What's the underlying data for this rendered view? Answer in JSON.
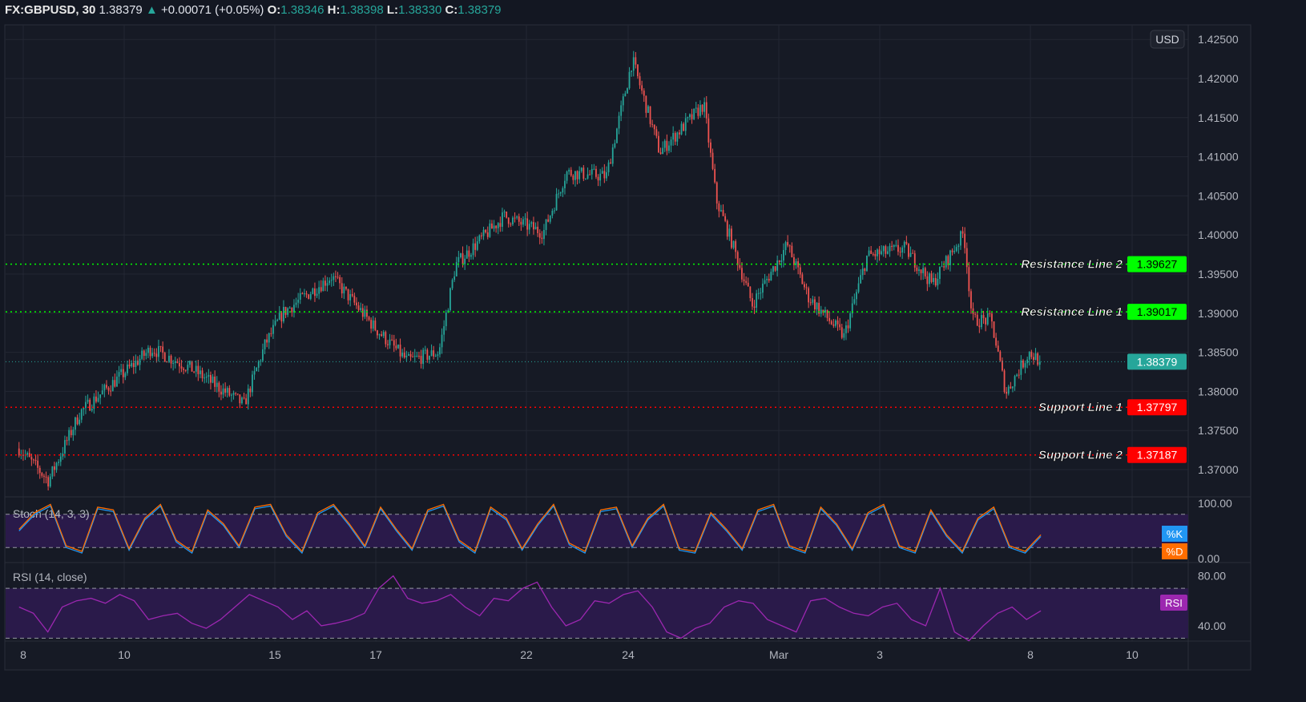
{
  "header": {
    "symbol": "FX:GBPUSD, 30",
    "last": "1.38379",
    "change": "+0.00071 (+0.05%)",
    "o_label": "O:",
    "o": "1.38346",
    "h_label": "H:",
    "h": "1.38398",
    "l_label": "L:",
    "l": "1.38330",
    "c_label": "C:",
    "c": "1.38379",
    "up_arrow_icon": "triangle-up"
  },
  "currency_button": "USD",
  "colors": {
    "background": "#131722",
    "up": "#26a69a",
    "down": "#ef5350",
    "resistance": "#00ff00",
    "support": "#ff0000",
    "stoch_k": "#2196f3",
    "stoch_d": "#ff6d00",
    "rsi": "#9c27b0",
    "band": "#2a1a4a"
  },
  "chart_data": [
    {
      "type": "candlestick",
      "title": "FX:GBPUSD, 30",
      "ylim": [
        1.366,
        1.426
      ],
      "y_ticks": [
        "1.37000",
        "1.37500",
        "1.38000",
        "1.38500",
        "1.39000",
        "1.39500",
        "1.40000",
        "1.40500",
        "1.41000",
        "1.41500",
        "1.42000",
        "1.42500"
      ],
      "x_ticks": [
        "8",
        "10",
        "15",
        "17",
        "22",
        "24",
        "Mar",
        "3",
        "8",
        "10"
      ],
      "grid": true,
      "close_path": [
        [
          "Feb 07 22:00",
          1.3727
        ],
        [
          "Feb 08 12:00",
          1.3686
        ],
        [
          "Feb 09 03:00",
          1.3773
        ],
        [
          "Feb 09 22:00",
          1.3819
        ],
        [
          "Feb 10 13:00",
          1.3855
        ],
        [
          "Feb 11 08:00",
          1.3829
        ],
        [
          "Feb 12 09:00",
          1.3783
        ],
        [
          "Feb 12 19:00",
          1.386
        ],
        [
          "Feb 15 04:00",
          1.3901
        ],
        [
          "Feb 16 03:00",
          1.3947
        ],
        [
          "Feb 17 00:00",
          1.388
        ],
        [
          "Feb 17 15:00",
          1.3839
        ],
        [
          "Feb 18 06:00",
          1.385
        ],
        [
          "Feb 18 14:00",
          1.3962
        ],
        [
          "Feb 19 13:00",
          1.4024
        ],
        [
          "Feb 22 08:00",
          1.4003
        ],
        [
          "Feb 22 19:00",
          1.408
        ],
        [
          "Feb 23 14:00",
          1.4075
        ],
        [
          "Feb 24 02:00",
          1.4224
        ],
        [
          "Feb 24 15:00",
          1.4106
        ],
        [
          "Feb 25 12:00",
          1.4167
        ],
        [
          "Feb 25 18:00",
          1.4044
        ],
        [
          "Feb 26 01:00",
          1.3993
        ],
        [
          "Feb 26 11:00",
          1.3911
        ],
        [
          "Mar 01 04:00",
          1.3988
        ],
        [
          "Mar 01 14:00",
          1.3921
        ],
        [
          "Mar 02 07:00",
          1.387
        ],
        [
          "Mar 02 18:00",
          1.3973
        ],
        [
          "Mar 03 12:00",
          1.3983
        ],
        [
          "Mar 04 01:00",
          1.3937
        ],
        [
          "Mar 04 16:00",
          1.4003
        ],
        [
          "Mar 04 20:00",
          1.3891
        ],
        [
          "Mar 05 05:00",
          1.3891
        ],
        [
          "Mar 05 12:00",
          1.3798
        ],
        [
          "Mar 05 23:00",
          1.385
        ],
        [
          "Mar 08 05:00",
          1.38379
        ]
      ],
      "last_price": {
        "value": 1.38379,
        "label": "1.38379"
      },
      "horizontal_lines": [
        {
          "name": "Resistance Line 2",
          "value": 1.39627,
          "label": "1.39627",
          "kind": "resistance"
        },
        {
          "name": "Resistance Line 1",
          "value": 1.39017,
          "label": "1.39017",
          "kind": "resistance"
        },
        {
          "name": "Support Line 1",
          "value": 1.37797,
          "label": "1.37797",
          "kind": "support"
        },
        {
          "name": "Support Line 2",
          "value": 1.37187,
          "label": "1.37187",
          "kind": "support"
        }
      ]
    },
    {
      "type": "line",
      "title": "Stoch (14, 3, 3)",
      "ylim": [
        0,
        100
      ],
      "y_ticks": [
        "100.00",
        "0.00"
      ],
      "bands": [
        20,
        80
      ],
      "legend": [
        "%K",
        "%D"
      ],
      "series": [
        {
          "name": "%K",
          "values": [
            50,
            80,
            95,
            20,
            10,
            90,
            85,
            15,
            70,
            95,
            30,
            10,
            85,
            60,
            20,
            90,
            95,
            40,
            10,
            80,
            95,
            60,
            20,
            90,
            50,
            15,
            85,
            95,
            30,
            10,
            90,
            70,
            15,
            60,
            95,
            25,
            10,
            85,
            90,
            20,
            70,
            95,
            15,
            10,
            80,
            50,
            15,
            85,
            95,
            20,
            10,
            90,
            60,
            15,
            80,
            95,
            20,
            10,
            85,
            40,
            10,
            70,
            90,
            20,
            10,
            40
          ]
        }
      ]
    },
    {
      "type": "line",
      "title": "RSI (14, close)",
      "ylim": [
        20,
        90
      ],
      "y_ticks": [
        "80.00",
        "40.00"
      ],
      "bands": [
        30,
        70
      ],
      "legend": [
        "RSI"
      ],
      "series": [
        {
          "name": "RSI",
          "values": [
            55,
            50,
            35,
            55,
            60,
            62,
            58,
            65,
            60,
            45,
            48,
            50,
            42,
            38,
            45,
            55,
            65,
            60,
            55,
            45,
            52,
            40,
            42,
            45,
            50,
            70,
            80,
            62,
            58,
            60,
            65,
            55,
            48,
            62,
            60,
            70,
            75,
            55,
            40,
            45,
            60,
            58,
            65,
            68,
            55,
            35,
            30,
            38,
            42,
            55,
            60,
            58,
            45,
            40,
            35,
            60,
            62,
            55,
            50,
            48,
            55,
            58,
            45,
            40,
            70,
            35,
            28,
            40,
            50,
            55,
            45,
            52
          ]
        }
      ]
    }
  ]
}
